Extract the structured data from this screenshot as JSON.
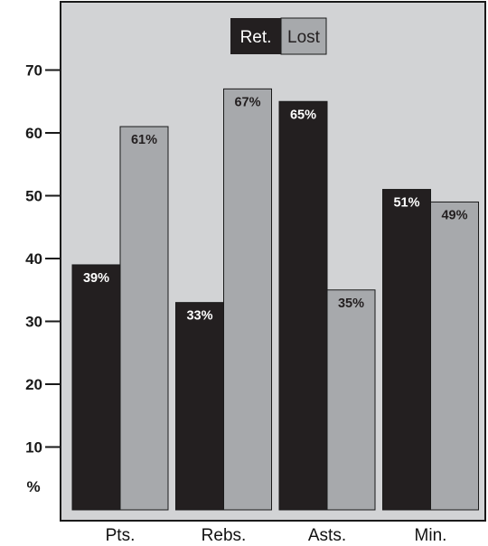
{
  "chart_data": {
    "type": "bar",
    "categories": [
      "Pts.",
      "Rebs.",
      "Asts.",
      "Min."
    ],
    "series": [
      {
        "name": "Ret.",
        "values": [
          39,
          33,
          65,
          51
        ],
        "labels": [
          "39%",
          "33%",
          "65%",
          "51%"
        ]
      },
      {
        "name": "Lost",
        "values": [
          61,
          67,
          35,
          49
        ],
        "labels": [
          "61%",
          "67%",
          "35%",
          "49%"
        ]
      }
    ],
    "yticks": [
      10,
      20,
      30,
      40,
      50,
      60,
      70
    ],
    "ylabel": "%",
    "ylim": [
      0,
      78
    ],
    "grid": false,
    "legend_position": "top-center"
  },
  "colors": {
    "plot_background": "#d2d3d5",
    "ret_bar": "#231f20",
    "lost_bar": "#a7a9ac",
    "ret_label": "#ffffff",
    "lost_label": "#231f20",
    "axis": "#1a1a1a"
  }
}
